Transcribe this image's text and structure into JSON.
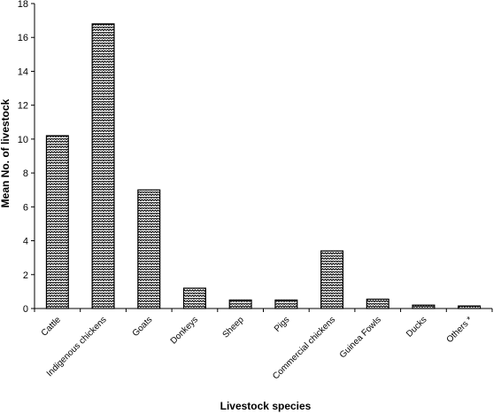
{
  "chart_data": {
    "type": "bar",
    "title": "",
    "xlabel": "Livestock species",
    "ylabel": "Mean No. of livestock",
    "categories": [
      "Cattle",
      "Indigenous chickens",
      "Goats",
      "Donkeys",
      "Sheep",
      "Pigs",
      "Commercial chickens",
      "Guinea Fowls",
      "Ducks",
      "Others *"
    ],
    "values": [
      10.2,
      16.8,
      7.0,
      1.2,
      0.5,
      0.5,
      3.4,
      0.55,
      0.2,
      0.15
    ],
    "ylim": [
      0,
      18
    ],
    "yticks": [
      0,
      2,
      4,
      6,
      8,
      10,
      12,
      14,
      16,
      18
    ],
    "grid": false,
    "legend": "none",
    "bar_pattern": "black-white zigzag hatch"
  }
}
